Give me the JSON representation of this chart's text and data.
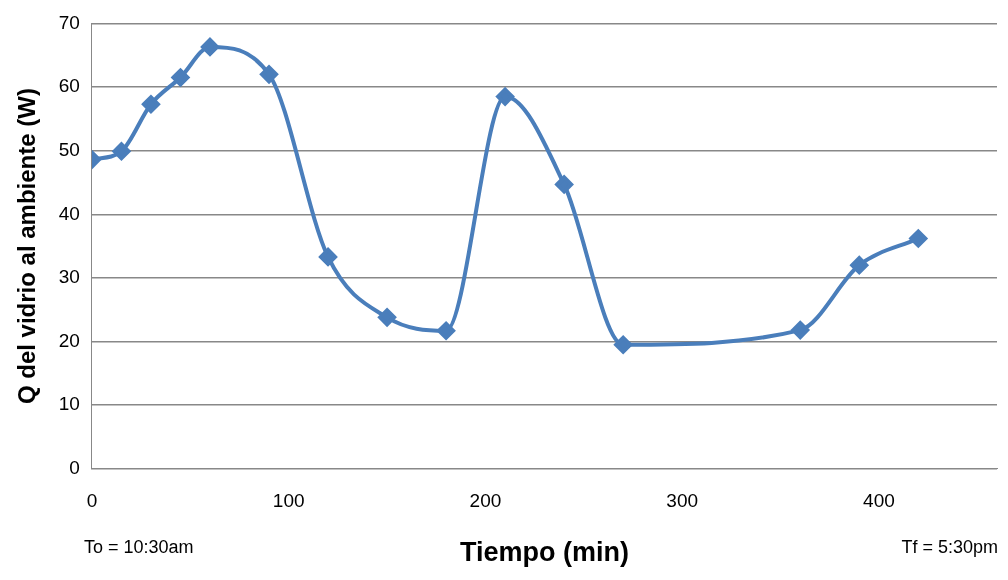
{
  "chart_data": {
    "type": "line",
    "xlabel": "Tiempo (min)",
    "ylabel": "Q del vidrio al ambiente (W)",
    "x": [
      0,
      15,
      30,
      45,
      60,
      90,
      120,
      150,
      180,
      210,
      240,
      270,
      360,
      390,
      420
    ],
    "series": [
      {
        "color": "#4a7ebb",
        "values": [
          48.6,
          49.9,
          57.3,
          61.5,
          66.3,
          62,
          33.3,
          23.8,
          21.7,
          58.5,
          44.7,
          19.5,
          21.8,
          32,
          36.2
        ]
      }
    ],
    "xlim": [
      0,
      460
    ],
    "xticks": [
      0,
      100,
      200,
      300,
      400
    ],
    "ylim": [
      0,
      70
    ],
    "yticks": [
      0,
      10,
      20,
      30,
      40,
      50,
      60,
      70
    ],
    "grid": "y",
    "legend": false,
    "marker": "diamond",
    "line_style": "solid",
    "annotations": [
      "To = 10:30am",
      "Tf = 5:30pm"
    ]
  }
}
